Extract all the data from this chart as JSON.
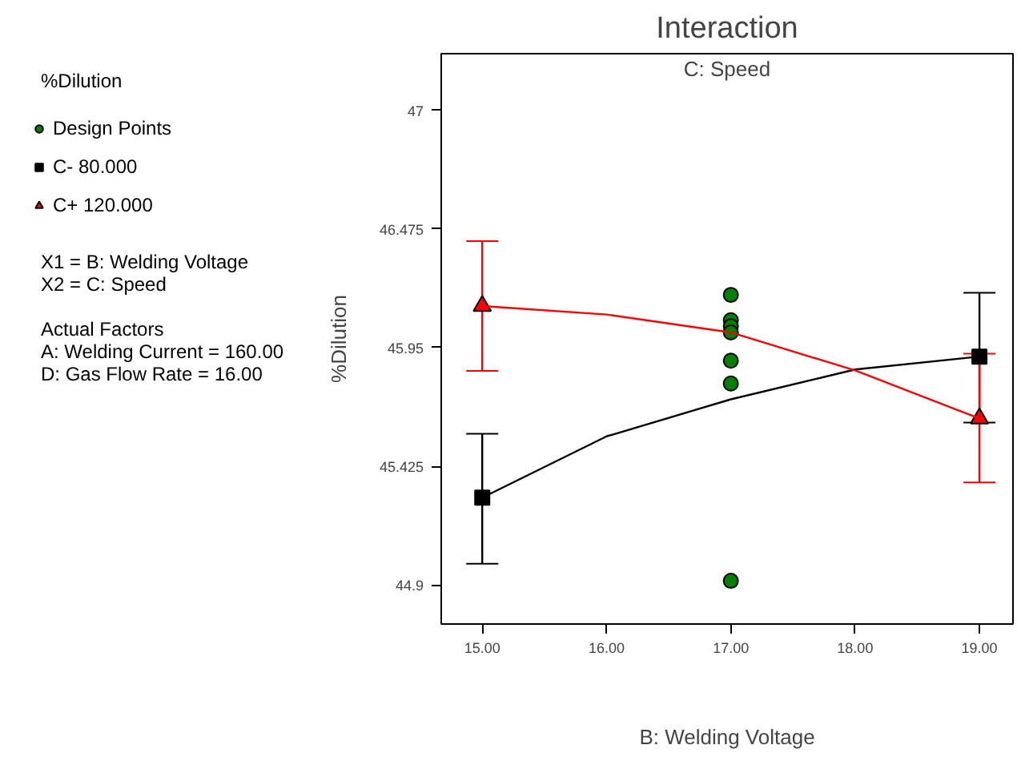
{
  "chart_data": {
    "type": "line",
    "title": "Interaction",
    "subtitle": "C: Speed",
    "xlabel": "B: Welding Voltage",
    "ylabel": "%Dilution",
    "annotations": [
      "%Dilution",
      "X1 = B: Welding Voltage",
      "X2 = C: Speed",
      "Actual Factors",
      "A: Welding Current = 160.00",
      "D: Gas Flow Rate = 16.00"
    ],
    "xlim": [
      14.67,
      19.27
    ],
    "ylim": [
      44.727,
      47.25
    ],
    "xticks": [
      {
        "value": 15,
        "label": "15.00"
      },
      {
        "value": 16,
        "label": "16.00"
      },
      {
        "value": 17,
        "label": "17.00"
      },
      {
        "value": 18,
        "label": "18.00"
      },
      {
        "value": 19,
        "label": "19.00"
      }
    ],
    "yticks": [
      44.9,
      45.425,
      45.95,
      46.475,
      47
    ],
    "grid": false,
    "legend": "left",
    "series": [
      {
        "name": "Design Points",
        "type": "scatter",
        "marker": "circle",
        "color": "#008000",
        "x": [
          17,
          17,
          17,
          17,
          17,
          17,
          17
        ],
        "values": [
          46.183,
          46.071,
          46.044,
          46.017,
          45.892,
          45.791,
          44.918
        ]
      },
      {
        "name": "C- 80.000",
        "type": "scatter",
        "marker": "square",
        "color": "#000000",
        "x": [
          15,
          19
        ],
        "values": [
          45.286,
          45.91
        ],
        "errors": [
          [
            44.994,
            45.569
          ],
          [
            45.618,
            46.192
          ]
        ]
      },
      {
        "name": "C+ 120.000",
        "type": "scatter",
        "marker": "triangle",
        "color": "#ff0000",
        "x": [
          15,
          19
        ],
        "values": [
          46.134,
          45.636
        ],
        "errors": [
          [
            45.847,
            46.421
          ],
          [
            45.353,
            45.923
          ]
        ]
      },
      {
        "color": "#000000",
        "x": [
          15,
          16,
          17,
          18,
          19
        ],
        "values": [
          45.286,
          45.557,
          45.721,
          45.853,
          45.91
        ]
      },
      {
        "color": "#ff0000",
        "x": [
          15,
          16,
          17,
          18,
          19
        ],
        "values": [
          46.134,
          46.096,
          46.017,
          45.849,
          45.636
        ]
      }
    ]
  }
}
